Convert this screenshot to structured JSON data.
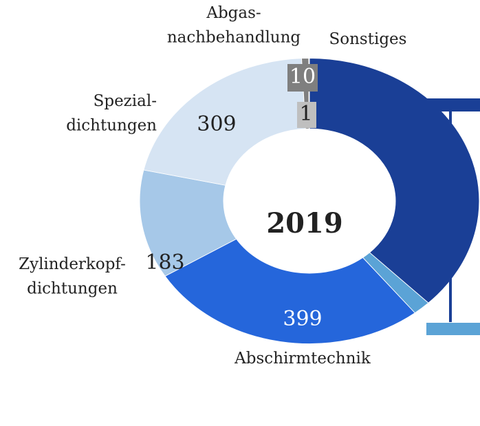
{
  "chart_data": {
    "type": "donut",
    "center_label": "2019",
    "categories": [
      null,
      null,
      "Abschirmtechnik",
      "Zylinderkopf-\ndichtungen",
      "Spezial-\ndichtungen",
      "Abgas-\nnachbehandlung",
      "Sonstiges"
    ],
    "values": [
      560,
      25,
      399,
      183,
      309,
      10,
      1
    ],
    "colors": [
      "#1a3f96",
      "#5ba3d6",
      "#2566db",
      "#a6c8e8",
      "#d6e4f3",
      "#7f7f7f",
      "#bfbfbf"
    ]
  }
}
